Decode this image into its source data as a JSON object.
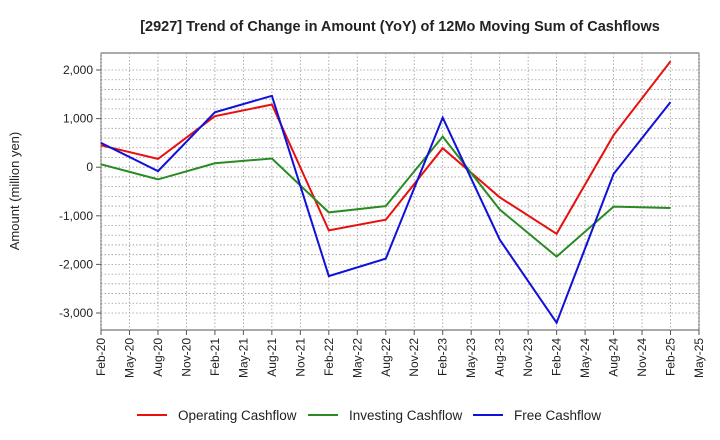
{
  "chart_data": {
    "type": "line",
    "title": "[2927]  Trend of Change in Amount (YoY) of 12Mo Moving Sum of Cashflows",
    "ylabel": "Amount (million yen)",
    "xlabel": "",
    "ylim": [
      -3350,
      2350
    ],
    "yticks": [
      2000,
      1000,
      0,
      -1000,
      -2000,
      -3000
    ],
    "ytick_labels": [
      "2,000",
      "1,000",
      "0",
      "-1,000",
      "-2,000",
      "-3,000"
    ],
    "categories": [
      "Feb-20",
      "May-20",
      "Aug-20",
      "Nov-20",
      "Feb-21",
      "May-21",
      "Aug-21",
      "Nov-21",
      "Feb-22",
      "May-22",
      "Aug-22",
      "Nov-22",
      "Feb-23",
      "May-23",
      "Aug-23",
      "Nov-23",
      "Feb-24",
      "May-24",
      "Aug-24",
      "Nov-24",
      "Feb-25",
      "May-25"
    ],
    "legend_position": "bottom",
    "grid": true,
    "series": [
      {
        "name": "Operating Cashflow",
        "color": "#e8100f",
        "points": [
          {
            "x": "Feb-20",
            "y": 450
          },
          {
            "x": "Aug-20",
            "y": 170
          },
          {
            "x": "Feb-21",
            "y": 1050
          },
          {
            "x": "Aug-21",
            "y": 1290
          },
          {
            "x": "Feb-22",
            "y": -1300
          },
          {
            "x": "Aug-22",
            "y": -1080
          },
          {
            "x": "Feb-23",
            "y": 390
          },
          {
            "x": "Aug-23",
            "y": -620
          },
          {
            "x": "Feb-24",
            "y": -1370
          },
          {
            "x": "Aug-24",
            "y": 660
          },
          {
            "x": "Feb-25",
            "y": 2180
          }
        ]
      },
      {
        "name": "Investing Cashflow",
        "color": "#2a8a23",
        "points": [
          {
            "x": "Feb-20",
            "y": 60
          },
          {
            "x": "Aug-20",
            "y": -250
          },
          {
            "x": "Feb-21",
            "y": 80
          },
          {
            "x": "Aug-21",
            "y": 180
          },
          {
            "x": "Feb-22",
            "y": -930
          },
          {
            "x": "Aug-22",
            "y": -800
          },
          {
            "x": "Feb-23",
            "y": 630
          },
          {
            "x": "Aug-23",
            "y": -870
          },
          {
            "x": "Feb-24",
            "y": -1840
          },
          {
            "x": "Aug-24",
            "y": -810
          },
          {
            "x": "Feb-25",
            "y": -840
          }
        ]
      },
      {
        "name": "Free Cashflow",
        "color": "#1010d8",
        "points": [
          {
            "x": "Feb-20",
            "y": 500
          },
          {
            "x": "Aug-20",
            "y": -80
          },
          {
            "x": "Feb-21",
            "y": 1130
          },
          {
            "x": "Aug-21",
            "y": 1470
          },
          {
            "x": "Feb-22",
            "y": -2240
          },
          {
            "x": "Aug-22",
            "y": -1880
          },
          {
            "x": "Feb-23",
            "y": 1020
          },
          {
            "x": "Aug-23",
            "y": -1490
          },
          {
            "x": "Feb-24",
            "y": -3200
          },
          {
            "x": "Aug-24",
            "y": -140
          },
          {
            "x": "Feb-25",
            "y": 1340
          }
        ]
      }
    ]
  }
}
